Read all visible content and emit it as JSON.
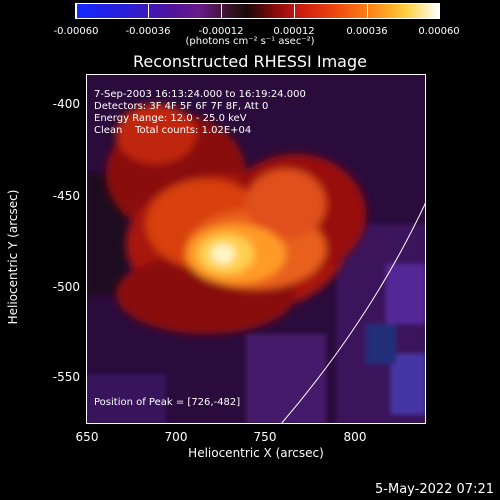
{
  "colorbar": {
    "labels": [
      "-0.00060",
      "-0.00036",
      "-0.00012",
      "0.00012",
      "0.00036",
      "0.00060"
    ],
    "units_prefix": "(photons cm",
    "units_text": "(photons cm⁻² s⁻¹ asec⁻²)"
  },
  "title": "Reconstructed RHESSI Image",
  "info": {
    "time": "7-Sep-2003 16:13:24.000 to 16:19:24.000",
    "detectors": "Detectors: 3F 4F 5F 6F 7F 8F, Att 0",
    "energy": "Energy Range: 12.0 - 25.0 keV",
    "clean": "Clean    Total counts: 1.02E+04",
    "peak": "Position of Peak = [726,-482]"
  },
  "axes": {
    "xlabel": "Heliocentric X (arcsec)",
    "ylabel": "Heliocentric Y (arcsec)",
    "xticks": [
      "650",
      "700",
      "750",
      "800"
    ],
    "yticks": [
      "-400",
      "-450",
      "-500",
      "-550"
    ],
    "xlim": [
      642,
      836
    ],
    "ylim": [
      -575,
      -375
    ],
    "limb_color": "#ffffff"
  },
  "footer_date": "5-May-2022 07:21",
  "colors": {
    "background": "#000000",
    "image_low": "#2a0b3a",
    "image_high": "#ffffff"
  }
}
